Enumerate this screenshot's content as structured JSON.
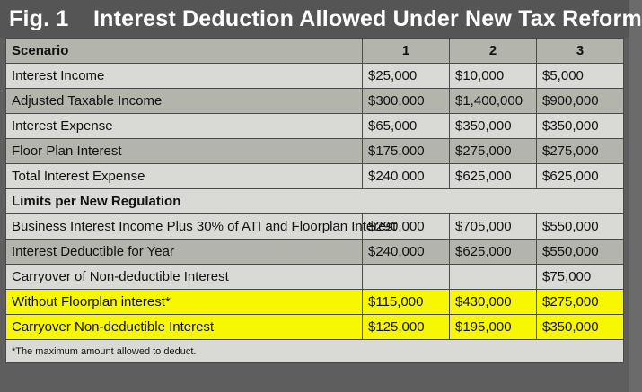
{
  "title": {
    "figure": "Fig. 1",
    "text": "Interest Deduction Allowed Under New Tax Reform"
  },
  "colors": {
    "header_bg": "#555555",
    "row_dark": "#b3b5ad",
    "row_light": "#d9dad5",
    "highlight": "#f7f700"
  },
  "table": {
    "header": [
      "Scenario",
      "1",
      "2",
      "3"
    ],
    "rows_part1": [
      [
        "Interest Income",
        "$25,000",
        "$10,000",
        "$5,000"
      ],
      [
        "Adjusted Taxable Income",
        "$300,000",
        "$1,400,000",
        "$900,000"
      ],
      [
        "Interest Expense",
        "$65,000",
        "$350,000",
        "$350,000"
      ],
      [
        "Floor Plan Interest",
        "$175,000",
        "$275,000",
        "$275,000"
      ],
      [
        "Total Interest Expense",
        "$240,000",
        "$625,000",
        "$625,000"
      ]
    ],
    "section_label": "Limits per New Regulation",
    "rows_part2": [
      [
        "Business Interest Income Plus 30% of ATI and Floorplan Interest",
        "$290,000",
        "$705,000",
        "$550,000"
      ],
      [
        "Interest Deductible for Year",
        "$240,000",
        "$625,000",
        "$550,000"
      ],
      [
        "Carryover of Non-deductible Interest",
        "",
        "",
        "$75,000"
      ]
    ],
    "rows_highlight": [
      [
        "Without Floorplan interest*",
        "$115,000",
        "$430,000",
        "$275,000"
      ],
      [
        "Carryover Non-deductible Interest",
        "$125,000",
        "$195,000",
        "$350,000"
      ]
    ],
    "footnote": "*The maximum amount allowed to deduct."
  }
}
